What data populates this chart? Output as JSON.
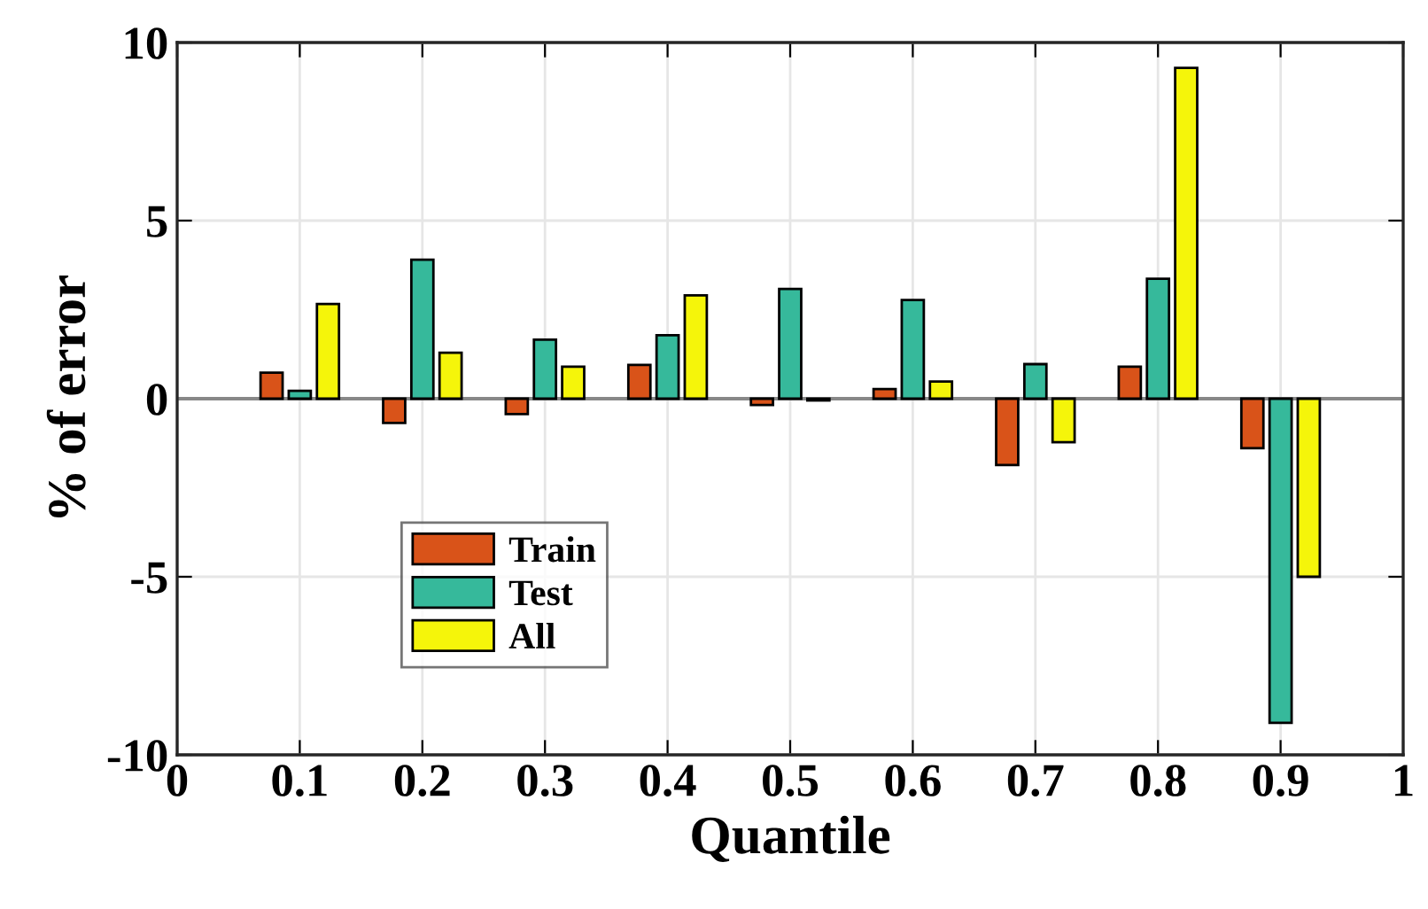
{
  "chart_data": {
    "type": "bar",
    "xlabel": "Quantile",
    "ylabel": "% of error",
    "x": [
      0.1,
      0.2,
      0.3,
      0.4,
      0.5,
      0.6,
      0.7,
      0.8,
      0.9
    ],
    "series": [
      {
        "name": "Train",
        "color": "#d95319",
        "values": [
          0.73,
          -0.68,
          -0.43,
          0.95,
          -0.18,
          0.27,
          -1.86,
          0.9,
          -1.39
        ]
      },
      {
        "name": "Test",
        "color": "#36b99b",
        "values": [
          0.22,
          3.9,
          1.66,
          1.78,
          3.08,
          2.77,
          0.97,
          3.37,
          -9.1
        ]
      },
      {
        "name": "All",
        "color": "#f5f50a",
        "values": [
          2.66,
          1.29,
          0.9,
          2.9,
          -0.05,
          0.48,
          -1.22,
          9.29,
          -5.0
        ]
      }
    ],
    "xlim": [
      0,
      1
    ],
    "xticks": [
      0,
      0.1,
      0.2,
      0.3,
      0.4,
      0.5,
      0.6,
      0.7,
      0.8,
      0.9,
      1
    ],
    "ylim": [
      -10,
      10
    ],
    "yticks": [
      -10,
      -5,
      0,
      5,
      10
    ],
    "grid": true,
    "legend": "bottom left"
  }
}
